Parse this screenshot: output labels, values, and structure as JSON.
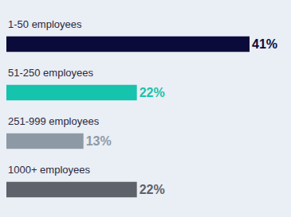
{
  "chart_data": {
    "type": "bar",
    "orientation": "horizontal",
    "categories": [
      "1-50 employees",
      "51-250 employees",
      "251-999 employees",
      "1000+ employees"
    ],
    "values": [
      41,
      22,
      13,
      22
    ],
    "value_labels": [
      "41%",
      "22%",
      "13%",
      "22%"
    ],
    "colors": [
      "#0b0b3b",
      "#16c3ac",
      "#8e99a6",
      "#5d626b"
    ],
    "data_labels": true,
    "tick_labels": false,
    "grid": false,
    "xlim": [
      0,
      41
    ]
  }
}
